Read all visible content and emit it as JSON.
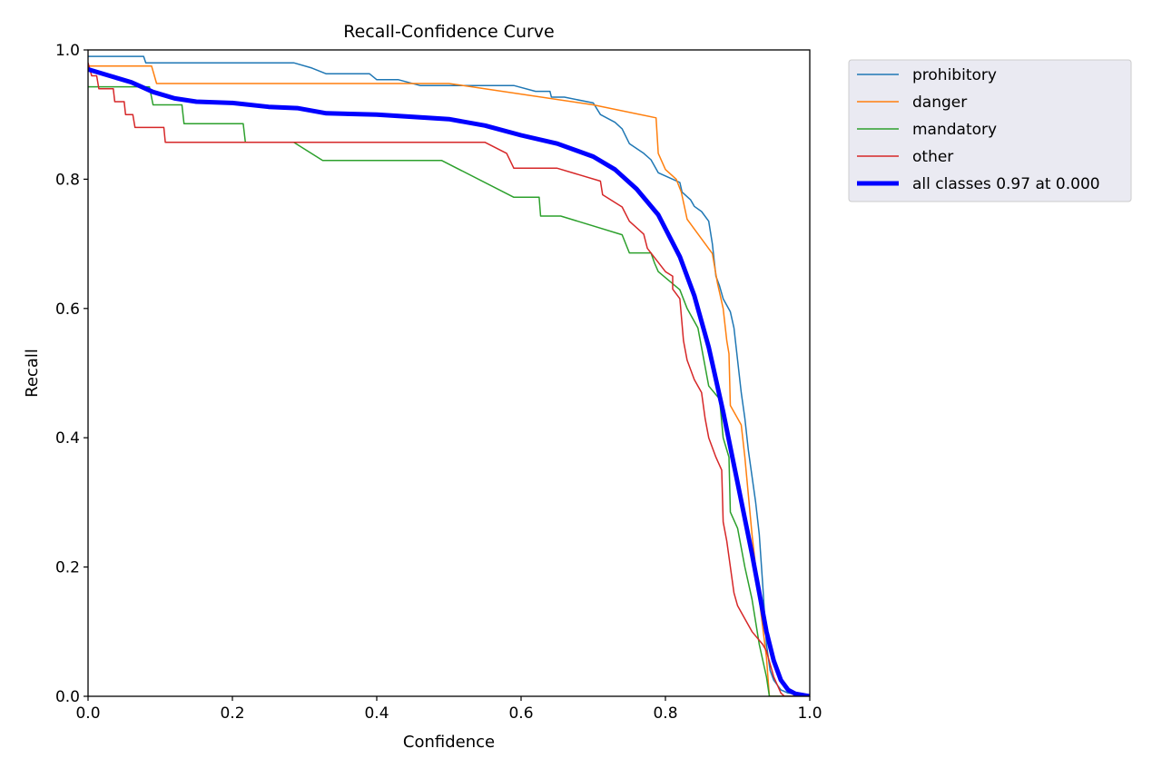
{
  "chart_data": {
    "type": "line",
    "title": "Recall-Confidence Curve",
    "xlabel": "Confidence",
    "ylabel": "Recall",
    "xlim": [
      0,
      1
    ],
    "ylim": [
      0,
      1
    ],
    "xticks": [
      "0.0",
      "0.2",
      "0.4",
      "0.6",
      "0.8",
      "1.0"
    ],
    "yticks": [
      "0.0",
      "0.2",
      "0.4",
      "0.6",
      "0.8",
      "1.0"
    ],
    "grid": false,
    "legend_position": "outside-top-right",
    "series": [
      {
        "name": "prohibitory",
        "color": "#1f77b4",
        "width": "thin",
        "points": [
          [
            0,
            0.99
          ],
          [
            0.077,
            0.99
          ],
          [
            0.08,
            0.98
          ],
          [
            0.285,
            0.98
          ],
          [
            0.31,
            0.972
          ],
          [
            0.33,
            0.963
          ],
          [
            0.39,
            0.963
          ],
          [
            0.4,
            0.954
          ],
          [
            0.43,
            0.954
          ],
          [
            0.46,
            0.945
          ],
          [
            0.59,
            0.945
          ],
          [
            0.62,
            0.936
          ],
          [
            0.64,
            0.936
          ],
          [
            0.642,
            0.927
          ],
          [
            0.66,
            0.927
          ],
          [
            0.7,
            0.918
          ],
          [
            0.71,
            0.9
          ],
          [
            0.73,
            0.888
          ],
          [
            0.74,
            0.878
          ],
          [
            0.75,
            0.855
          ],
          [
            0.77,
            0.84
          ],
          [
            0.78,
            0.83
          ],
          [
            0.79,
            0.81
          ],
          [
            0.81,
            0.8
          ],
          [
            0.82,
            0.795
          ],
          [
            0.823,
            0.78
          ],
          [
            0.835,
            0.768
          ],
          [
            0.84,
            0.758
          ],
          [
            0.85,
            0.75
          ],
          [
            0.86,
            0.735
          ],
          [
            0.865,
            0.7
          ],
          [
            0.87,
            0.65
          ],
          [
            0.875,
            0.635
          ],
          [
            0.88,
            0.615
          ],
          [
            0.89,
            0.595
          ],
          [
            0.895,
            0.57
          ],
          [
            0.9,
            0.52
          ],
          [
            0.905,
            0.47
          ],
          [
            0.91,
            0.43
          ],
          [
            0.915,
            0.38
          ],
          [
            0.92,
            0.34
          ],
          [
            0.925,
            0.3
          ],
          [
            0.93,
            0.25
          ],
          [
            0.935,
            0.17
          ],
          [
            0.94,
            0.08
          ],
          [
            0.945,
            0.04
          ],
          [
            0.95,
            0.025
          ],
          [
            0.96,
            0.01
          ],
          [
            0.97,
            0.005
          ],
          [
            1,
            0
          ]
        ]
      },
      {
        "name": "danger",
        "color": "#ff7f0e",
        "width": "thin",
        "points": [
          [
            0,
            0.975
          ],
          [
            0.088,
            0.975
          ],
          [
            0.095,
            0.948
          ],
          [
            0.5,
            0.948
          ],
          [
            0.52,
            0.945
          ],
          [
            0.7,
            0.915
          ],
          [
            0.787,
            0.895
          ],
          [
            0.79,
            0.84
          ],
          [
            0.8,
            0.815
          ],
          [
            0.815,
            0.8
          ],
          [
            0.822,
            0.78
          ],
          [
            0.83,
            0.738
          ],
          [
            0.865,
            0.685
          ],
          [
            0.872,
            0.64
          ],
          [
            0.88,
            0.6
          ],
          [
            0.885,
            0.55
          ],
          [
            0.888,
            0.53
          ],
          [
            0.89,
            0.45
          ],
          [
            0.905,
            0.42
          ],
          [
            0.91,
            0.37
          ],
          [
            0.92,
            0.25
          ],
          [
            0.93,
            0.15
          ],
          [
            0.94,
            0.06
          ],
          [
            0.944,
            0
          ],
          [
            1,
            0
          ]
        ]
      },
      {
        "name": "mandatory",
        "color": "#2ca02c",
        "width": "thin",
        "points": [
          [
            0,
            0.943
          ],
          [
            0.085,
            0.943
          ],
          [
            0.09,
            0.915
          ],
          [
            0.13,
            0.915
          ],
          [
            0.133,
            0.886
          ],
          [
            0.215,
            0.886
          ],
          [
            0.218,
            0.857
          ],
          [
            0.285,
            0.857
          ],
          [
            0.325,
            0.829
          ],
          [
            0.49,
            0.829
          ],
          [
            0.59,
            0.772
          ],
          [
            0.625,
            0.772
          ],
          [
            0.627,
            0.743
          ],
          [
            0.655,
            0.743
          ],
          [
            0.74,
            0.714
          ],
          [
            0.75,
            0.686
          ],
          [
            0.78,
            0.686
          ],
          [
            0.785,
            0.67
          ],
          [
            0.79,
            0.657
          ],
          [
            0.82,
            0.629
          ],
          [
            0.83,
            0.6
          ],
          [
            0.845,
            0.57
          ],
          [
            0.86,
            0.48
          ],
          [
            0.875,
            0.46
          ],
          [
            0.88,
            0.4
          ],
          [
            0.888,
            0.37
          ],
          [
            0.89,
            0.285
          ],
          [
            0.9,
            0.26
          ],
          [
            0.91,
            0.2
          ],
          [
            0.92,
            0.15
          ],
          [
            0.93,
            0.08
          ],
          [
            0.94,
            0.03
          ],
          [
            0.944,
            0
          ],
          [
            1,
            0
          ]
        ]
      },
      {
        "name": "other",
        "color": "#d62728",
        "width": "thin",
        "points": [
          [
            0,
            0.98
          ],
          [
            0.005,
            0.96
          ],
          [
            0.012,
            0.96
          ],
          [
            0.015,
            0.94
          ],
          [
            0.035,
            0.94
          ],
          [
            0.037,
            0.92
          ],
          [
            0.05,
            0.92
          ],
          [
            0.052,
            0.9
          ],
          [
            0.062,
            0.9
          ],
          [
            0.065,
            0.88
          ],
          [
            0.105,
            0.88
          ],
          [
            0.107,
            0.857
          ],
          [
            0.55,
            0.857
          ],
          [
            0.58,
            0.84
          ],
          [
            0.59,
            0.817
          ],
          [
            0.65,
            0.817
          ],
          [
            0.71,
            0.797
          ],
          [
            0.713,
            0.776
          ],
          [
            0.74,
            0.757
          ],
          [
            0.75,
            0.735
          ],
          [
            0.77,
            0.715
          ],
          [
            0.775,
            0.693
          ],
          [
            0.8,
            0.657
          ],
          [
            0.81,
            0.65
          ],
          [
            0.81,
            0.63
          ],
          [
            0.82,
            0.615
          ],
          [
            0.825,
            0.55
          ],
          [
            0.83,
            0.52
          ],
          [
            0.84,
            0.49
          ],
          [
            0.85,
            0.47
          ],
          [
            0.855,
            0.43
          ],
          [
            0.86,
            0.4
          ],
          [
            0.87,
            0.37
          ],
          [
            0.878,
            0.35
          ],
          [
            0.88,
            0.27
          ],
          [
            0.885,
            0.24
          ],
          [
            0.895,
            0.16
          ],
          [
            0.9,
            0.14
          ],
          [
            0.91,
            0.12
          ],
          [
            0.92,
            0.1
          ],
          [
            0.935,
            0.08
          ],
          [
            0.94,
            0.07
          ],
          [
            0.95,
            0.03
          ],
          [
            0.96,
            0.005
          ],
          [
            0.965,
            0
          ],
          [
            1,
            0
          ]
        ]
      },
      {
        "name": "all classes 0.97 at 0.000",
        "color": "#0000ff",
        "width": "thick",
        "points": [
          [
            0,
            0.97
          ],
          [
            0.03,
            0.96
          ],
          [
            0.06,
            0.95
          ],
          [
            0.09,
            0.935
          ],
          [
            0.12,
            0.925
          ],
          [
            0.15,
            0.92
          ],
          [
            0.2,
            0.918
          ],
          [
            0.25,
            0.912
          ],
          [
            0.29,
            0.91
          ],
          [
            0.33,
            0.902
          ],
          [
            0.4,
            0.9
          ],
          [
            0.5,
            0.893
          ],
          [
            0.55,
            0.883
          ],
          [
            0.6,
            0.868
          ],
          [
            0.65,
            0.855
          ],
          [
            0.7,
            0.835
          ],
          [
            0.73,
            0.815
          ],
          [
            0.76,
            0.785
          ],
          [
            0.79,
            0.745
          ],
          [
            0.82,
            0.68
          ],
          [
            0.84,
            0.62
          ],
          [
            0.86,
            0.54
          ],
          [
            0.88,
            0.44
          ],
          [
            0.9,
            0.33
          ],
          [
            0.92,
            0.22
          ],
          [
            0.93,
            0.16
          ],
          [
            0.94,
            0.1
          ],
          [
            0.95,
            0.055
          ],
          [
            0.96,
            0.025
          ],
          [
            0.97,
            0.01
          ],
          [
            0.98,
            0.004
          ],
          [
            1,
            0
          ]
        ]
      }
    ]
  }
}
